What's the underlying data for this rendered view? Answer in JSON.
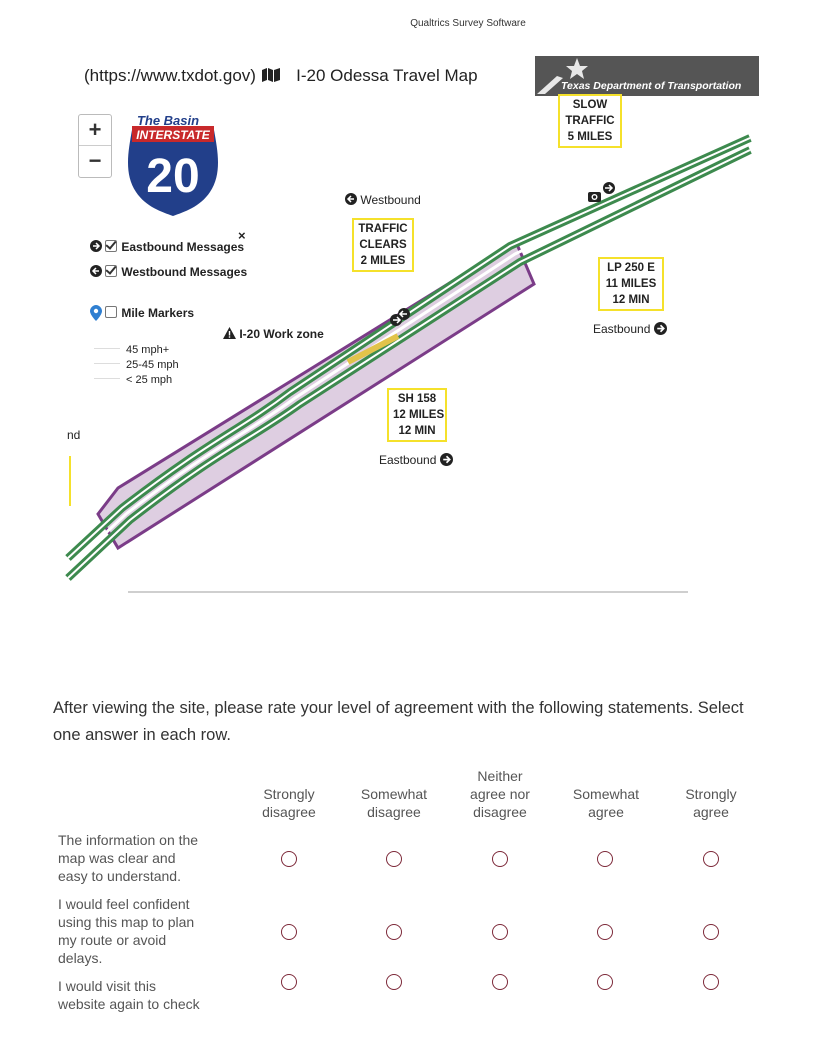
{
  "page_header": "Qualtrics Survey Software",
  "map_title": {
    "prefix": "(https://www.txdot.gov)",
    "title": "I-20 Odessa Travel Map"
  },
  "logo": {
    "agency": "Texas Department of Transportation",
    "basin_text": "The Basin",
    "interstate_text": "INTERSTATE",
    "route_number": "20"
  },
  "zoom": {
    "in": "+",
    "out": "−"
  },
  "legend": {
    "close": "×",
    "eastbound_messages": "Eastbound Messages",
    "westbound_messages": "Westbound Messages",
    "mile_markers": "Mile Markers",
    "work_zone": "I-20 Work zone",
    "speeds": [
      "45 mph+",
      "25-45 mph",
      "< 25 mph"
    ]
  },
  "map_labels": {
    "westbound": "Westbound",
    "eastbound_1": "Eastbound",
    "eastbound_2": "Eastbound",
    "cut_left": "nd"
  },
  "signs": {
    "slow": [
      "SLOW",
      "TRAFFIC",
      "5 MILES"
    ],
    "traffic_clears": [
      "TRAFFIC",
      "CLEARS",
      "2 MILES"
    ],
    "lp250": [
      "LP 250 E",
      "11 MILES",
      "12 MIN"
    ],
    "sh158": [
      "SH 158",
      "12 MILES",
      "12 MIN"
    ]
  },
  "colors": {
    "road": "#3d8a4e",
    "workzone_fill": "#d8c5dc",
    "workzone_border": "#7b3c88",
    "sign_border": "#f5e12b",
    "radio": "#7d2a3a"
  },
  "survey": {
    "question": "After viewing the site, please rate your level of agreement with the following statements. Select one answer in each row.",
    "columns": [
      [
        "Strongly",
        "disagree"
      ],
      [
        "Somewhat",
        "disagree"
      ],
      [
        "Neither",
        "agree nor",
        "disagree"
      ],
      [
        "Somewhat",
        "agree"
      ],
      [
        "Strongly",
        "agree"
      ]
    ],
    "rows": [
      [
        "The information on the",
        "map was clear and",
        "easy to understand."
      ],
      [
        "I would feel confident",
        "using this map to plan",
        "my route or avoid",
        "delays."
      ],
      [
        "I would visit this",
        "website again to check"
      ]
    ]
  }
}
